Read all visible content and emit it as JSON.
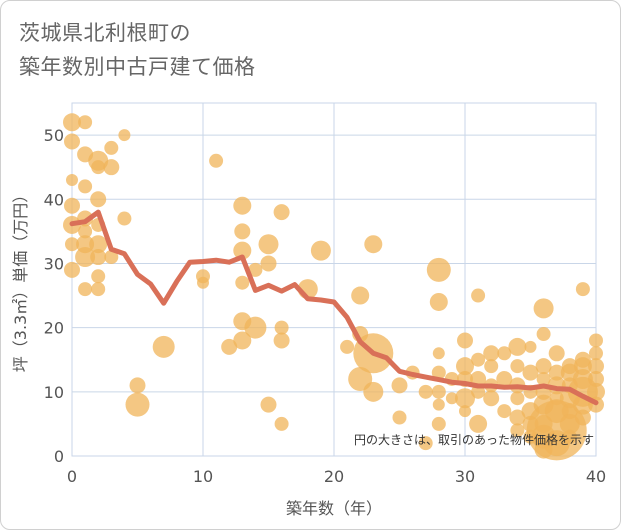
{
  "title_line1": "茨城県北利根町の",
  "title_line2": "築年数別中古戸建て価格",
  "note": "円の大きさは、取引のあった物件価格を示す",
  "colors": {
    "bubble": "#f0b45a",
    "line": "#d97058",
    "grid": "#c9d6e8",
    "background": "#ffffff"
  },
  "chart_data": {
    "type": "scatter",
    "xlabel": "築年数（年）",
    "ylabel": "坪（3.3㎡）単価（万円）",
    "xlim": [
      0,
      40
    ],
    "ylim": [
      0,
      55
    ],
    "xticks": [
      "0",
      "10",
      "20",
      "30",
      "40"
    ],
    "yticks": [
      "0",
      "10",
      "20",
      "30",
      "40",
      "50"
    ],
    "grid": true,
    "series": [
      {
        "type": "scatter",
        "note_size": "bubble size = transaction price",
        "points": [
          {
            "x": 0,
            "y": 52,
            "s": 9
          },
          {
            "x": 0,
            "y": 49,
            "s": 8
          },
          {
            "x": 0,
            "y": 43,
            "s": 6
          },
          {
            "x": 0,
            "y": 39,
            "s": 8
          },
          {
            "x": 0,
            "y": 36,
            "s": 9
          },
          {
            "x": 0,
            "y": 33,
            "s": 7
          },
          {
            "x": 0,
            "y": 29,
            "s": 8
          },
          {
            "x": 1,
            "y": 52,
            "s": 7
          },
          {
            "x": 1,
            "y": 47,
            "s": 8
          },
          {
            "x": 1,
            "y": 42,
            "s": 7
          },
          {
            "x": 1,
            "y": 37,
            "s": 8
          },
          {
            "x": 1,
            "y": 35,
            "s": 7
          },
          {
            "x": 1,
            "y": 33,
            "s": 9
          },
          {
            "x": 1,
            "y": 31,
            "s": 10
          },
          {
            "x": 1,
            "y": 26,
            "s": 7
          },
          {
            "x": 2,
            "y": 46,
            "s": 10
          },
          {
            "x": 2,
            "y": 45,
            "s": 7
          },
          {
            "x": 2,
            "y": 40,
            "s": 8
          },
          {
            "x": 2,
            "y": 36,
            "s": 7
          },
          {
            "x": 2,
            "y": 33,
            "s": 9
          },
          {
            "x": 2,
            "y": 31,
            "s": 8
          },
          {
            "x": 2,
            "y": 28,
            "s": 7
          },
          {
            "x": 2,
            "y": 26,
            "s": 7
          },
          {
            "x": 3,
            "y": 48,
            "s": 7
          },
          {
            "x": 3,
            "y": 45,
            "s": 8
          },
          {
            "x": 3,
            "y": 31,
            "s": 7
          },
          {
            "x": 4,
            "y": 50,
            "s": 6
          },
          {
            "x": 4,
            "y": 37,
            "s": 7
          },
          {
            "x": 5,
            "y": 11,
            "s": 8
          },
          {
            "x": 5,
            "y": 8,
            "s": 12
          },
          {
            "x": 7,
            "y": 17,
            "s": 11
          },
          {
            "x": 10,
            "y": 28,
            "s": 7
          },
          {
            "x": 10,
            "y": 27,
            "s": 6
          },
          {
            "x": 11,
            "y": 46,
            "s": 7
          },
          {
            "x": 12,
            "y": 17,
            "s": 8
          },
          {
            "x": 13,
            "y": 39,
            "s": 9
          },
          {
            "x": 13,
            "y": 35,
            "s": 8
          },
          {
            "x": 13,
            "y": 32,
            "s": 9
          },
          {
            "x": 13,
            "y": 27,
            "s": 7
          },
          {
            "x": 13,
            "y": 21,
            "s": 9
          },
          {
            "x": 13,
            "y": 18,
            "s": 9
          },
          {
            "x": 14,
            "y": 29,
            "s": 7
          },
          {
            "x": 14,
            "y": 20,
            "s": 11
          },
          {
            "x": 15,
            "y": 33,
            "s": 10
          },
          {
            "x": 15,
            "y": 30,
            "s": 8
          },
          {
            "x": 15,
            "y": 8,
            "s": 8
          },
          {
            "x": 16,
            "y": 38,
            "s": 8
          },
          {
            "x": 16,
            "y": 20,
            "s": 7
          },
          {
            "x": 16,
            "y": 18,
            "s": 8
          },
          {
            "x": 16,
            "y": 5,
            "s": 7
          },
          {
            "x": 18,
            "y": 26,
            "s": 10
          },
          {
            "x": 19,
            "y": 32,
            "s": 10
          },
          {
            "x": 21,
            "y": 17,
            "s": 7
          },
          {
            "x": 22,
            "y": 25,
            "s": 9
          },
          {
            "x": 22,
            "y": 19,
            "s": 8
          },
          {
            "x": 22,
            "y": 12,
            "s": 12
          },
          {
            "x": 23,
            "y": 33,
            "s": 9
          },
          {
            "x": 23,
            "y": 16,
            "s": 20
          },
          {
            "x": 23,
            "y": 10,
            "s": 10
          },
          {
            "x": 25,
            "y": 11,
            "s": 8
          },
          {
            "x": 25,
            "y": 6,
            "s": 7
          },
          {
            "x": 26,
            "y": 13,
            "s": 7
          },
          {
            "x": 27,
            "y": 10,
            "s": 7
          },
          {
            "x": 27,
            "y": 2,
            "s": 7
          },
          {
            "x": 28,
            "y": 29,
            "s": 12
          },
          {
            "x": 28,
            "y": 24,
            "s": 9
          },
          {
            "x": 28,
            "y": 16,
            "s": 6
          },
          {
            "x": 28,
            "y": 13,
            "s": 7
          },
          {
            "x": 28,
            "y": 10,
            "s": 7
          },
          {
            "x": 28,
            "y": 8,
            "s": 6
          },
          {
            "x": 28,
            "y": 5,
            "s": 7
          },
          {
            "x": 29,
            "y": 12,
            "s": 7
          },
          {
            "x": 29,
            "y": 9,
            "s": 6
          },
          {
            "x": 30,
            "y": 18,
            "s": 8
          },
          {
            "x": 30,
            "y": 14,
            "s": 9
          },
          {
            "x": 30,
            "y": 12,
            "s": 8
          },
          {
            "x": 30,
            "y": 9,
            "s": 10
          },
          {
            "x": 30,
            "y": 7,
            "s": 6
          },
          {
            "x": 31,
            "y": 25,
            "s": 7
          },
          {
            "x": 31,
            "y": 15,
            "s": 7
          },
          {
            "x": 31,
            "y": 12,
            "s": 8
          },
          {
            "x": 31,
            "y": 10,
            "s": 7
          },
          {
            "x": 31,
            "y": 5,
            "s": 9
          },
          {
            "x": 32,
            "y": 16,
            "s": 8
          },
          {
            "x": 32,
            "y": 14,
            "s": 7
          },
          {
            "x": 32,
            "y": 11,
            "s": 7
          },
          {
            "x": 32,
            "y": 9,
            "s": 8
          },
          {
            "x": 33,
            "y": 16,
            "s": 7
          },
          {
            "x": 33,
            "y": 12,
            "s": 8
          },
          {
            "x": 33,
            "y": 7,
            "s": 7
          },
          {
            "x": 34,
            "y": 17,
            "s": 9
          },
          {
            "x": 34,
            "y": 14,
            "s": 7
          },
          {
            "x": 34,
            "y": 11,
            "s": 8
          },
          {
            "x": 34,
            "y": 9,
            "s": 7
          },
          {
            "x": 34,
            "y": 6,
            "s": 8
          },
          {
            "x": 34,
            "y": 4,
            "s": 7
          },
          {
            "x": 35,
            "y": 17,
            "s": 6
          },
          {
            "x": 35,
            "y": 13,
            "s": 8
          },
          {
            "x": 35,
            "y": 10,
            "s": 7
          },
          {
            "x": 35,
            "y": 7,
            "s": 9
          },
          {
            "x": 35,
            "y": 5,
            "s": 8
          },
          {
            "x": 35,
            "y": 3,
            "s": 7
          },
          {
            "x": 36,
            "y": 23,
            "s": 10
          },
          {
            "x": 36,
            "y": 19,
            "s": 7
          },
          {
            "x": 36,
            "y": 14,
            "s": 8
          },
          {
            "x": 36,
            "y": 12,
            "s": 7
          },
          {
            "x": 36,
            "y": 10,
            "s": 8
          },
          {
            "x": 36,
            "y": 8,
            "s": 10
          },
          {
            "x": 36,
            "y": 5,
            "s": 9
          },
          {
            "x": 36,
            "y": 3,
            "s": 12
          },
          {
            "x": 36,
            "y": 1,
            "s": 9
          },
          {
            "x": 37,
            "y": 16,
            "s": 8
          },
          {
            "x": 37,
            "y": 13,
            "s": 8
          },
          {
            "x": 37,
            "y": 11,
            "s": 9
          },
          {
            "x": 37,
            "y": 9,
            "s": 7
          },
          {
            "x": 37,
            "y": 7,
            "s": 12
          },
          {
            "x": 37,
            "y": 4,
            "s": 30
          },
          {
            "x": 37,
            "y": 2,
            "s": 13
          },
          {
            "x": 38,
            "y": 14,
            "s": 8
          },
          {
            "x": 38,
            "y": 13,
            "s": 9
          },
          {
            "x": 38,
            "y": 11,
            "s": 8
          },
          {
            "x": 38,
            "y": 9,
            "s": 10
          },
          {
            "x": 38,
            "y": 7,
            "s": 8
          },
          {
            "x": 38,
            "y": 5,
            "s": 10
          },
          {
            "x": 38,
            "y": 3,
            "s": 7
          },
          {
            "x": 39,
            "y": 26,
            "s": 7
          },
          {
            "x": 39,
            "y": 15,
            "s": 8
          },
          {
            "x": 39,
            "y": 14,
            "s": 9
          },
          {
            "x": 39,
            "y": 12,
            "s": 10
          },
          {
            "x": 39,
            "y": 10,
            "s": 15
          },
          {
            "x": 39,
            "y": 8,
            "s": 10
          },
          {
            "x": 39,
            "y": 6,
            "s": 8
          },
          {
            "x": 40,
            "y": 18,
            "s": 7
          },
          {
            "x": 40,
            "y": 16,
            "s": 7
          },
          {
            "x": 40,
            "y": 14,
            "s": 8
          },
          {
            "x": 40,
            "y": 12,
            "s": 8
          },
          {
            "x": 40,
            "y": 10,
            "s": 9
          },
          {
            "x": 40,
            "y": 8,
            "s": 8
          }
        ]
      },
      {
        "type": "line",
        "x": [
          0,
          1,
          2,
          3,
          4,
          5,
          6,
          7,
          8,
          9,
          10,
          11,
          12,
          13,
          14,
          15,
          16,
          17,
          18,
          19,
          20,
          21,
          22,
          23,
          24,
          25,
          26,
          27,
          28,
          29,
          30,
          31,
          32,
          33,
          34,
          35,
          36,
          37,
          38,
          39,
          40
        ],
        "values": [
          36.2,
          36.5,
          38,
          32.2,
          31.5,
          28.3,
          26.8,
          23.8,
          27.2,
          30.2,
          30.3,
          30.5,
          30.2,
          31,
          25.8,
          26.6,
          25.7,
          26.7,
          24.5,
          24.3,
          24,
          21.6,
          17.8,
          16,
          15.3,
          13.2,
          12.7,
          12.3,
          11.9,
          11.5,
          11.3,
          10.9,
          10.9,
          10.7,
          10.8,
          10.6,
          10.9,
          10.5,
          10.4,
          9.3,
          8.3
        ]
      }
    ]
  }
}
